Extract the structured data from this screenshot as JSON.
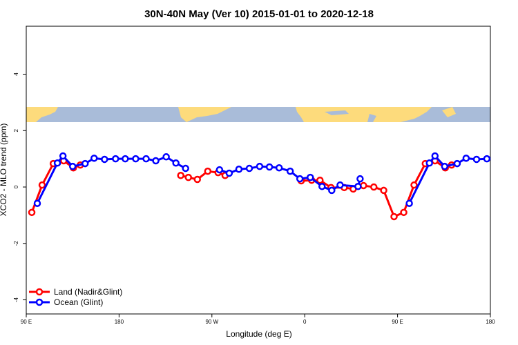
{
  "chart_data": {
    "type": "line",
    "title": "30N-40N May (Ver 10)   2015-01-01 to 2020-12-18",
    "x_label": "Longitude (deg E)",
    "y_label": "XCO2 - MLO trend (ppm)",
    "xlim": [
      90,
      540
    ],
    "ylim": [
      -4.5,
      5.7
    ],
    "xticks": [
      {
        "value": 90,
        "label": "90 E"
      },
      180,
      {
        "value": 270,
        "label": "90 W"
      },
      {
        "value": 360,
        "label": "0"
      },
      {
        "value": 450,
        "label": "90 E"
      },
      {
        "value": 540,
        "label": "180"
      }
    ],
    "yticks": [
      -4,
      -2,
      0,
      2,
      4
    ],
    "legend": "bottom-left",
    "series": [
      {
        "name": "Land (Nadir&Glint)",
        "color": "#ff0000",
        "x": [
          95.4,
          105.4,
          116.2,
          126.3,
          135.7,
          142.4,
          null,
          239.8,
          247.2,
          255.9,
          266,
          276,
          282.8,
          null,
          356.6,
          366.7,
          374.8,
          385.5,
          398.3,
          407,
          417,
          427,
          436.6,
          446.6,
          456,
          466,
          476.9,
          486.3,
          496.3,
          502.4
        ],
        "values": [
          -0.9,
          0.07,
          0.83,
          0.93,
          0.68,
          0.78,
          null,
          0.41,
          0.34,
          0.27,
          0.56,
          0.51,
          0.41,
          null,
          0.22,
          0.24,
          0.24,
          -0.02,
          -0.02,
          -0.07,
          0.05,
          0,
          -0.12,
          -1.05,
          -0.9,
          0.07,
          0.83,
          0.93,
          0.68,
          0.78
        ]
      },
      {
        "name": "Ocean (Glint)",
        "color": "#0000ff",
        "x": [
          100.7,
          120.2,
          125.6,
          135,
          147.1,
          155.8,
          165.9,
          176.6,
          186,
          196.1,
          206.2,
          215.6,
          225.7,
          235.1,
          244.5,
          null,
          277.4,
          286.8,
          296.2,
          306.3,
          316.3,
          325.8,
          335.2,
          345.9,
          355.3,
          365.4,
          376.8,
          386.2,
          394.3,
          411.7,
          413.7,
          null,
          461.4,
          480.9,
          486.3,
          495.7,
          507.8,
          516.5,
          526.6,
          536.6
        ],
        "values": [
          -0.58,
          0.85,
          1.1,
          0.73,
          0.83,
          1.02,
          0.98,
          1,
          1,
          1,
          1,
          0.93,
          1.07,
          0.85,
          0.66,
          null,
          0.61,
          0.49,
          0.63,
          0.66,
          0.73,
          0.71,
          0.68,
          0.56,
          0.29,
          0.34,
          0.02,
          -0.12,
          0.07,
          0.02,
          0.29,
          null,
          -0.58,
          0.85,
          1.1,
          0.73,
          0.83,
          1.02,
          0.98,
          1
        ]
      }
    ]
  }
}
